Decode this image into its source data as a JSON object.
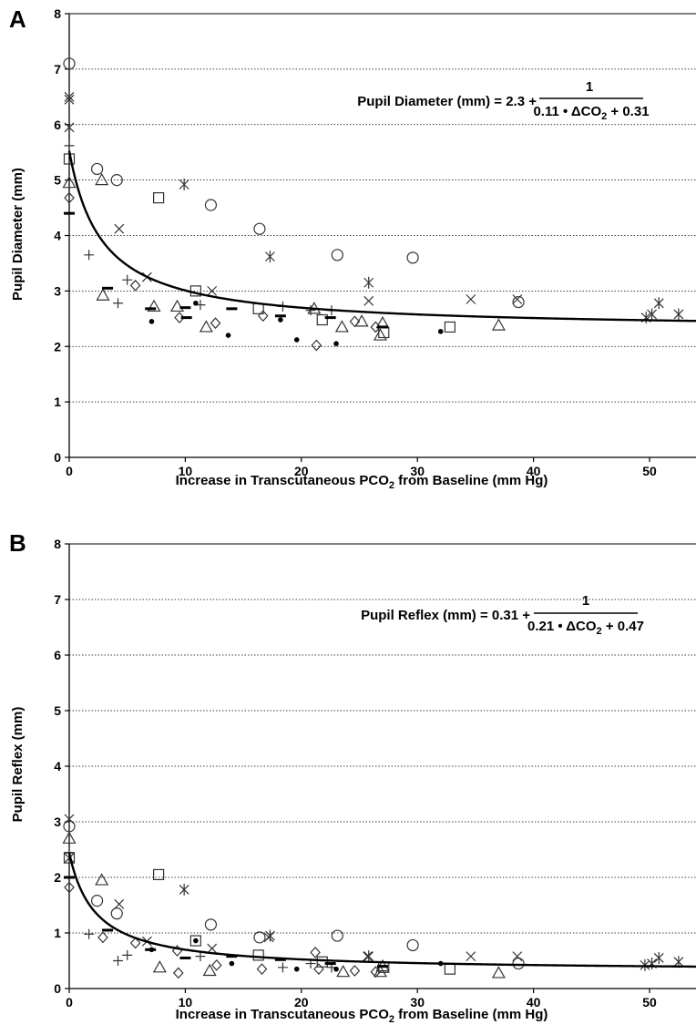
{
  "chart_data": [
    {
      "panel": "A",
      "type": "scatter",
      "xlabel": "Increase in Transcutaneous PCO",
      "xlabel_sub": "2",
      "xlabel_rest": " from Baseline (mm Hg)",
      "ylabel": "Pupil Diameter (mm)",
      "xlim": [
        0,
        54
      ],
      "ylim": [
        0,
        8
      ],
      "x_ticks": [
        0,
        10,
        20,
        30,
        40,
        50
      ],
      "y_ticks": [
        0,
        1,
        2,
        3,
        4,
        5,
        6,
        7,
        8
      ],
      "grid": "horizontal dotted",
      "equation": {
        "lhs": "Pupil Diameter (mm) = 2.3 +",
        "numerator": "1",
        "den_a": "0.11 • ΔCO",
        "den_sub": "2",
        "den_b": " + 0.31"
      },
      "fit": {
        "a": 2.3,
        "b": 0.11,
        "c": 0.31
      },
      "points": [
        {
          "m": "circle",
          "x": 0,
          "y": 7.1
        },
        {
          "m": "circle",
          "x": 2.4,
          "y": 5.2
        },
        {
          "m": "circle",
          "x": 4.1,
          "y": 5.0
        },
        {
          "m": "circle",
          "x": 12.2,
          "y": 4.55
        },
        {
          "m": "circle",
          "x": 16.4,
          "y": 4.12
        },
        {
          "m": "circle",
          "x": 23.1,
          "y": 3.65
        },
        {
          "m": "circle",
          "x": 29.6,
          "y": 3.6
        },
        {
          "m": "circle",
          "x": 38.7,
          "y": 2.8
        },
        {
          "m": "square",
          "x": 0,
          "y": 5.38
        },
        {
          "m": "square",
          "x": 7.7,
          "y": 4.68
        },
        {
          "m": "square",
          "x": 10.9,
          "y": 3.0
        },
        {
          "m": "square",
          "x": 16.3,
          "y": 2.68
        },
        {
          "m": "square",
          "x": 21.8,
          "y": 2.48
        },
        {
          "m": "square",
          "x": 27.1,
          "y": 2.25
        },
        {
          "m": "square",
          "x": 32.8,
          "y": 2.35
        },
        {
          "m": "triangle",
          "x": 0,
          "y": 4.95
        },
        {
          "m": "triangle",
          "x": 2.8,
          "y": 5.0
        },
        {
          "m": "triangle",
          "x": 2.9,
          "y": 2.92
        },
        {
          "m": "triangle",
          "x": 7.3,
          "y": 2.72
        },
        {
          "m": "triangle",
          "x": 9.3,
          "y": 2.72
        },
        {
          "m": "triangle",
          "x": 11.8,
          "y": 2.35
        },
        {
          "m": "triangle",
          "x": 21.1,
          "y": 2.68
        },
        {
          "m": "triangle",
          "x": 23.5,
          "y": 2.35
        },
        {
          "m": "triangle",
          "x": 25.2,
          "y": 2.45
        },
        {
          "m": "triangle",
          "x": 26.8,
          "y": 2.2
        },
        {
          "m": "triangle",
          "x": 27.0,
          "y": 2.42
        },
        {
          "m": "triangle",
          "x": 37.0,
          "y": 2.38
        },
        {
          "m": "diamond",
          "x": 0,
          "y": 4.68
        },
        {
          "m": "diamond",
          "x": 5.7,
          "y": 3.1
        },
        {
          "m": "diamond",
          "x": 9.5,
          "y": 2.52
        },
        {
          "m": "diamond",
          "x": 12.6,
          "y": 2.42
        },
        {
          "m": "diamond",
          "x": 16.7,
          "y": 2.55
        },
        {
          "m": "diamond",
          "x": 21.3,
          "y": 2.02
        },
        {
          "m": "diamond",
          "x": 24.6,
          "y": 2.45
        },
        {
          "m": "diamond",
          "x": 26.4,
          "y": 2.35
        },
        {
          "m": "x",
          "x": 0,
          "y": 6.45
        },
        {
          "m": "x",
          "x": 0,
          "y": 5.95
        },
        {
          "m": "x",
          "x": 4.3,
          "y": 4.12
        },
        {
          "m": "x",
          "x": 6.7,
          "y": 3.25
        },
        {
          "m": "x",
          "x": 12.3,
          "y": 3.0
        },
        {
          "m": "x",
          "x": 25.8,
          "y": 2.82
        },
        {
          "m": "x",
          "x": 34.6,
          "y": 2.85
        },
        {
          "m": "x",
          "x": 38.6,
          "y": 2.85
        },
        {
          "m": "star",
          "x": 0,
          "y": 6.5
        },
        {
          "m": "star",
          "x": 9.9,
          "y": 4.92
        },
        {
          "m": "star",
          "x": 17.3,
          "y": 3.62
        },
        {
          "m": "star",
          "x": 25.8,
          "y": 3.15
        },
        {
          "m": "star",
          "x": 49.7,
          "y": 2.52
        },
        {
          "m": "star",
          "x": 50.2,
          "y": 2.58
        },
        {
          "m": "star",
          "x": 50.8,
          "y": 2.78
        },
        {
          "m": "star",
          "x": 52.5,
          "y": 2.58
        },
        {
          "m": "plus",
          "x": 0,
          "y": 5.62
        },
        {
          "m": "plus",
          "x": 1.7,
          "y": 3.65
        },
        {
          "m": "plus",
          "x": 4.2,
          "y": 2.78
        },
        {
          "m": "plus",
          "x": 5.0,
          "y": 3.2
        },
        {
          "m": "plus",
          "x": 11.3,
          "y": 2.75
        },
        {
          "m": "plus",
          "x": 18.4,
          "y": 2.72
        },
        {
          "m": "plus",
          "x": 20.8,
          "y": 2.65
        },
        {
          "m": "plus",
          "x": 22.6,
          "y": 2.65
        },
        {
          "m": "dash",
          "x": 0,
          "y": 4.4
        },
        {
          "m": "dash",
          "x": 3.3,
          "y": 3.05
        },
        {
          "m": "dash",
          "x": 7.0,
          "y": 2.68
        },
        {
          "m": "dash",
          "x": 10.0,
          "y": 2.7
        },
        {
          "m": "dash",
          "x": 10.1,
          "y": 2.52
        },
        {
          "m": "dash",
          "x": 14.0,
          "y": 2.68
        },
        {
          "m": "dash",
          "x": 18.2,
          "y": 2.55
        },
        {
          "m": "dash",
          "x": 22.5,
          "y": 2.52
        },
        {
          "m": "dash",
          "x": 27.0,
          "y": 2.35
        },
        {
          "m": "dot",
          "x": 7.1,
          "y": 2.45
        },
        {
          "m": "dot",
          "x": 10.9,
          "y": 2.78
        },
        {
          "m": "dot",
          "x": 13.7,
          "y": 2.2
        },
        {
          "m": "dot",
          "x": 18.2,
          "y": 2.48
        },
        {
          "m": "dot",
          "x": 19.6,
          "y": 2.12
        },
        {
          "m": "dot",
          "x": 23.0,
          "y": 2.05
        },
        {
          "m": "dot",
          "x": 32.0,
          "y": 2.27
        }
      ]
    },
    {
      "panel": "B",
      "type": "scatter",
      "xlabel": "Increase in Transcutaneous PCO",
      "xlabel_sub": "2",
      "xlabel_rest": " from Baseline (mm Hg)",
      "ylabel": "Pupil Reflex (mm)",
      "xlim": [
        0,
        54
      ],
      "ylim": [
        0,
        8
      ],
      "x_ticks": [
        0,
        10,
        20,
        30,
        40,
        50
      ],
      "y_ticks": [
        0,
        1,
        2,
        3,
        4,
        5,
        6,
        7,
        8
      ],
      "grid": "horizontal dotted",
      "equation": {
        "lhs": "Pupil Reflex (mm) = 0.31 +",
        "numerator": "1",
        "den_a": "0.21 • ΔCO",
        "den_sub": "2",
        "den_b": " + 0.47"
      },
      "fit": {
        "a": 0.31,
        "b": 0.21,
        "c": 0.47
      },
      "points": [
        {
          "m": "circle",
          "x": 0,
          "y": 2.92
        },
        {
          "m": "circle",
          "x": 2.4,
          "y": 1.58
        },
        {
          "m": "circle",
          "x": 4.1,
          "y": 1.35
        },
        {
          "m": "circle",
          "x": 12.2,
          "y": 1.15
        },
        {
          "m": "circle",
          "x": 16.4,
          "y": 0.92
        },
        {
          "m": "circle",
          "x": 23.1,
          "y": 0.95
        },
        {
          "m": "circle",
          "x": 29.6,
          "y": 0.78
        },
        {
          "m": "circle",
          "x": 38.7,
          "y": 0.45
        },
        {
          "m": "square",
          "x": 0,
          "y": 2.35
        },
        {
          "m": "square",
          "x": 7.7,
          "y": 2.05
        },
        {
          "m": "square",
          "x": 10.9,
          "y": 0.86
        },
        {
          "m": "square",
          "x": 16.3,
          "y": 0.6
        },
        {
          "m": "square",
          "x": 21.8,
          "y": 0.48
        },
        {
          "m": "square",
          "x": 27.1,
          "y": 0.38
        },
        {
          "m": "square",
          "x": 32.8,
          "y": 0.35
        },
        {
          "m": "triangle",
          "x": 0,
          "y": 2.7
        },
        {
          "m": "triangle",
          "x": 2.8,
          "y": 1.95
        },
        {
          "m": "triangle",
          "x": 7.8,
          "y": 0.38
        },
        {
          "m": "triangle",
          "x": 12.1,
          "y": 0.32
        },
        {
          "m": "triangle",
          "x": 23.6,
          "y": 0.3
        },
        {
          "m": "triangle",
          "x": 26.8,
          "y": 0.3
        },
        {
          "m": "triangle",
          "x": 27.0,
          "y": 0.4
        },
        {
          "m": "triangle",
          "x": 37.0,
          "y": 0.28
        },
        {
          "m": "diamond",
          "x": 0,
          "y": 1.82
        },
        {
          "m": "diamond",
          "x": 2.9,
          "y": 0.92
        },
        {
          "m": "diamond",
          "x": 5.7,
          "y": 0.82
        },
        {
          "m": "diamond",
          "x": 9.4,
          "y": 0.28
        },
        {
          "m": "diamond",
          "x": 9.3,
          "y": 0.68
        },
        {
          "m": "diamond",
          "x": 12.7,
          "y": 0.42
        },
        {
          "m": "diamond",
          "x": 16.6,
          "y": 0.35
        },
        {
          "m": "diamond",
          "x": 21.2,
          "y": 0.65
        },
        {
          "m": "diamond",
          "x": 21.5,
          "y": 0.35
        },
        {
          "m": "diamond",
          "x": 24.6,
          "y": 0.32
        },
        {
          "m": "diamond",
          "x": 26.4,
          "y": 0.3
        },
        {
          "m": "x",
          "x": 0,
          "y": 2.35
        },
        {
          "m": "x",
          "x": 4.3,
          "y": 1.52
        },
        {
          "m": "x",
          "x": 6.7,
          "y": 0.85
        },
        {
          "m": "x",
          "x": 12.3,
          "y": 0.72
        },
        {
          "m": "x",
          "x": 17.2,
          "y": 0.92
        },
        {
          "m": "x",
          "x": 25.7,
          "y": 0.58
        },
        {
          "m": "x",
          "x": 34.6,
          "y": 0.58
        },
        {
          "m": "x",
          "x": 38.6,
          "y": 0.58
        },
        {
          "m": "star",
          "x": 0,
          "y": 3.05
        },
        {
          "m": "star",
          "x": 9.9,
          "y": 1.78
        },
        {
          "m": "star",
          "x": 17.3,
          "y": 0.95
        },
        {
          "m": "star",
          "x": 25.8,
          "y": 0.58
        },
        {
          "m": "star",
          "x": 49.6,
          "y": 0.42
        },
        {
          "m": "star",
          "x": 50.2,
          "y": 0.45
        },
        {
          "m": "star",
          "x": 50.8,
          "y": 0.55
        },
        {
          "m": "star",
          "x": 52.5,
          "y": 0.48
        },
        {
          "m": "plus",
          "x": 0,
          "y": 2.45
        },
        {
          "m": "plus",
          "x": 1.7,
          "y": 0.98
        },
        {
          "m": "plus",
          "x": 4.2,
          "y": 0.5
        },
        {
          "m": "plus",
          "x": 5.0,
          "y": 0.6
        },
        {
          "m": "plus",
          "x": 11.3,
          "y": 0.58
        },
        {
          "m": "plus",
          "x": 18.4,
          "y": 0.38
        },
        {
          "m": "plus",
          "x": 20.8,
          "y": 0.45
        },
        {
          "m": "plus",
          "x": 22.6,
          "y": 0.38
        },
        {
          "m": "dash",
          "x": 0,
          "y": 2.0
        },
        {
          "m": "dash",
          "x": 3.3,
          "y": 1.05
        },
        {
          "m": "dash",
          "x": 7.0,
          "y": 0.7
        },
        {
          "m": "dash",
          "x": 10.0,
          "y": 0.55
        },
        {
          "m": "dash",
          "x": 14.0,
          "y": 0.58
        },
        {
          "m": "dash",
          "x": 18.2,
          "y": 0.52
        },
        {
          "m": "dash",
          "x": 22.5,
          "y": 0.45
        },
        {
          "m": "dash",
          "x": 27.0,
          "y": 0.4
        },
        {
          "m": "dot",
          "x": 7.1,
          "y": 0.7
        },
        {
          "m": "dot",
          "x": 10.9,
          "y": 0.86
        },
        {
          "m": "dot",
          "x": 14.0,
          "y": 0.45
        },
        {
          "m": "dot",
          "x": 19.6,
          "y": 0.35
        },
        {
          "m": "dot",
          "x": 23.0,
          "y": 0.35
        },
        {
          "m": "dot",
          "x": 32.0,
          "y": 0.45
        }
      ]
    }
  ]
}
